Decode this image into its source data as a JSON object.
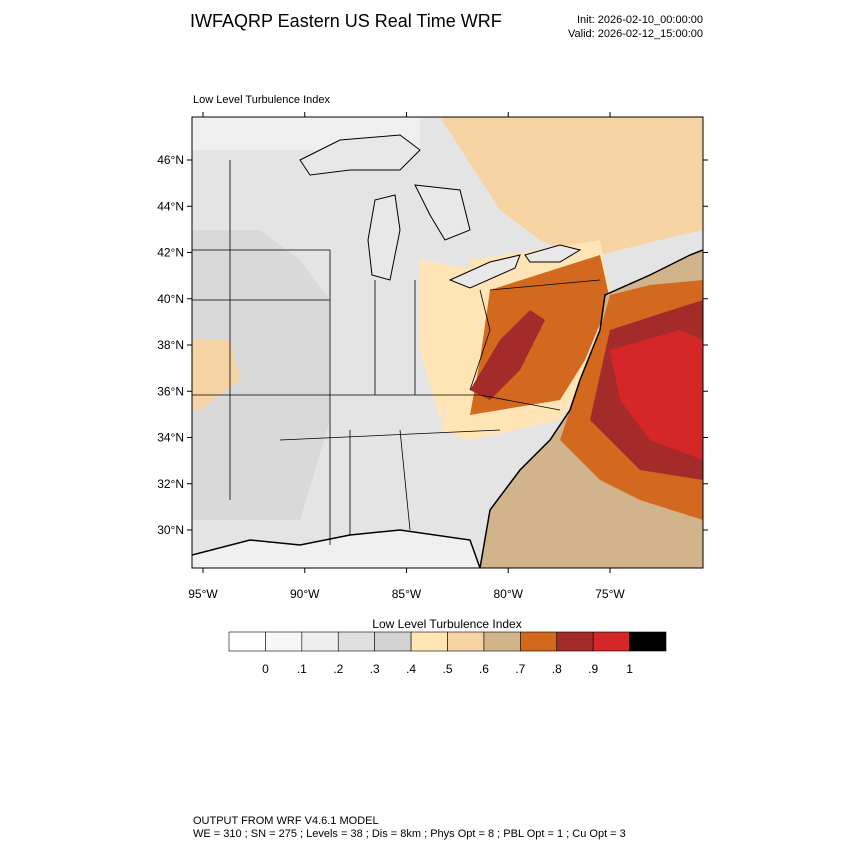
{
  "header": {
    "title": "IWFAQRP Eastern US Real Time WRF",
    "init": "Init: 2026-02-10_00:00:00",
    "valid": "Valid: 2026-02-12_15:00:00"
  },
  "map": {
    "title": "Low Level Turbulence Index",
    "lat_ticks": [
      {
        "value": 30,
        "label": "30°N"
      },
      {
        "value": 32,
        "label": "32°N"
      },
      {
        "value": 34,
        "label": "34°N"
      },
      {
        "value": 36,
        "label": "36°N"
      },
      {
        "value": 38,
        "label": "38°N"
      },
      {
        "value": 40,
        "label": "40°N"
      },
      {
        "value": 42,
        "label": "42°N"
      },
      {
        "value": 44,
        "label": "44°N"
      },
      {
        "value": 46,
        "label": "46°N"
      }
    ],
    "lon_ticks": [
      {
        "value": -95,
        "label": "95°W"
      },
      {
        "value": -90,
        "label": "90°W"
      },
      {
        "value": -85,
        "label": "85°W"
      },
      {
        "value": -80,
        "label": "80°W"
      },
      {
        "value": -75,
        "label": "75°W"
      }
    ]
  },
  "colorbar": {
    "title": "Low Level Turbulence Index",
    "colors": [
      "#ffffff",
      "#f7f7f7",
      "#eeeeee",
      "#e0e0e0",
      "#d3d3d3",
      "#ffe4b5",
      "#f5d3a3",
      "#d2b48c",
      "#d2691e",
      "#a52a2a",
      "#d62728",
      "#000000"
    ],
    "ticks": [
      {
        "value": 0,
        "label": "0"
      },
      {
        "value": 0.1,
        "label": ".1"
      },
      {
        "value": 0.2,
        "label": ".2"
      },
      {
        "value": 0.3,
        "label": ".3"
      },
      {
        "value": 0.4,
        "label": ".4"
      },
      {
        "value": 0.5,
        "label": ".5"
      },
      {
        "value": 0.6,
        "label": ".6"
      },
      {
        "value": 0.7,
        "label": ".7"
      },
      {
        "value": 0.8,
        "label": ".8"
      },
      {
        "value": 0.9,
        "label": ".9"
      },
      {
        "value": 1,
        "label": "1"
      }
    ]
  },
  "footer": {
    "line1": "OUTPUT FROM WRF V4.6.1 MODEL",
    "line2": "WE = 310 ; SN = 275 ; Levels = 38 ; Dis = 8km ; Phys Opt = 8 ; PBL Opt = 1 ; Cu Opt = 3"
  }
}
